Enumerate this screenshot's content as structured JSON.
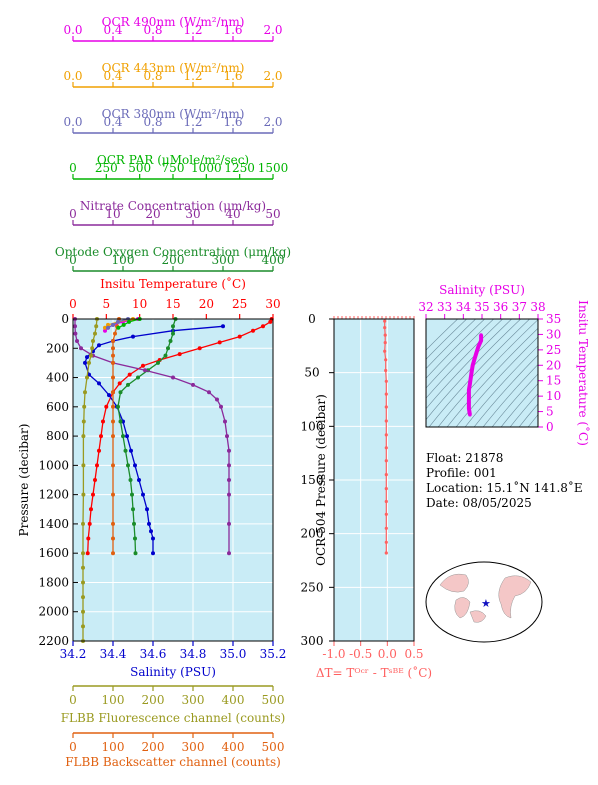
{
  "top_axes": [
    {
      "id": "ocr490",
      "label": "OCR 490nm (W/m²/nm)",
      "color": "#e600e6",
      "ticks": [
        "0.0",
        "0.4",
        "0.8",
        "1.2",
        "1.6",
        "2.0"
      ]
    },
    {
      "id": "ocr443",
      "label": "OCR 443nm (W/m²/nm)",
      "color": "#f0a000",
      "ticks": [
        "0.0",
        "0.4",
        "0.8",
        "1.2",
        "1.6",
        "2.0"
      ]
    },
    {
      "id": "ocr380",
      "label": "OCR 380nm (W/m²/nm)",
      "color": "#6a6ab8",
      "ticks": [
        "0.0",
        "0.4",
        "0.8",
        "1.2",
        "1.6",
        "2.0"
      ]
    },
    {
      "id": "par",
      "label": "OCR PAR (μMole/m²/sec)",
      "color": "#00b400",
      "ticks": [
        "0",
        "250",
        "500",
        "750",
        "1000",
        "1250",
        "1500"
      ]
    },
    {
      "id": "nitrate",
      "label": "Nitrate Concentration (μm/kg)",
      "color": "#8b2a9b",
      "ticks": [
        "0",
        "10",
        "20",
        "30",
        "40",
        "50"
      ]
    },
    {
      "id": "oxygen",
      "label": "Optode Oxygen Concentration (μm/kg)",
      "color": "#1a8c2a",
      "ticks": [
        "0",
        "100",
        "200",
        "300",
        "400"
      ]
    },
    {
      "id": "temp",
      "label": "Insitu Temperature (˚C)",
      "color": "#ff0000",
      "ticks": [
        "0",
        "5",
        "10",
        "15",
        "20",
        "25",
        "30"
      ]
    }
  ],
  "bottom_axes": [
    {
      "id": "salinity",
      "label": "Salinity (PSU)",
      "color": "#0000cc",
      "ticks": [
        "34.2",
        "34.4",
        "34.6",
        "34.8",
        "35.0",
        "35.2"
      ]
    },
    {
      "id": "fluor",
      "label": "FLBB Fluorescence channel (counts)",
      "color": "#9a9a20",
      "ticks": [
        "0",
        "100",
        "200",
        "300",
        "400",
        "500"
      ]
    },
    {
      "id": "backscatter",
      "label": "FLBB Backscatter channel (counts)",
      "color": "#e06010",
      "ticks": [
        "0",
        "100",
        "200",
        "300",
        "400",
        "500"
      ]
    }
  ],
  "chart_data": [
    {
      "type": "line",
      "panel": "main profile",
      "ylabel": "Pressure (decibar)",
      "ylim": [
        2200,
        0
      ],
      "yticks": [
        "0",
        "200",
        "400",
        "600",
        "800",
        "1000",
        "1200",
        "1400",
        "1600",
        "1800",
        "2000",
        "2200"
      ],
      "series": [
        {
          "name": "Insitu Temperature",
          "xlim": [
            0,
            30
          ],
          "color": "#ff0000",
          "x": [
            29.8,
            29.6,
            28.5,
            27,
            25,
            22,
            19,
            16,
            13,
            10.5,
            8.5,
            7,
            6,
            5,
            4.5,
            4.2,
            3.9,
            3.6,
            3.3,
            3.0,
            2.7,
            2.5,
            2.3,
            2.2
          ],
          "y": [
            0,
            20,
            50,
            80,
            120,
            160,
            200,
            240,
            280,
            320,
            380,
            440,
            500,
            600,
            700,
            800,
            900,
            1000,
            1100,
            1200,
            1300,
            1400,
            1500,
            1600
          ]
        },
        {
          "name": "Salinity",
          "xlim": [
            34.2,
            35.2
          ],
          "color": "#0000cc",
          "x": [
            34.95,
            34.7,
            34.5,
            34.4,
            34.33,
            34.3,
            34.27,
            34.26,
            34.28,
            34.33,
            34.38,
            34.42,
            34.45,
            34.47,
            34.49,
            34.51,
            34.53,
            34.55,
            34.57,
            34.58,
            34.59,
            34.6,
            34.6
          ],
          "y": [
            50,
            80,
            120,
            150,
            180,
            220,
            260,
            300,
            380,
            440,
            520,
            600,
            700,
            800,
            900,
            1000,
            1100,
            1200,
            1300,
            1400,
            1450,
            1500,
            1600
          ]
        },
        {
          "name": "Optode Oxygen Concentration",
          "xlim": [
            0,
            400
          ],
          "color": "#1a8c2a",
          "x": [
            205,
            200,
            200,
            195,
            190,
            185,
            170,
            150,
            130,
            110,
            95,
            90,
            95,
            100,
            105,
            110,
            115,
            118,
            120,
            122,
            124,
            125
          ],
          "y": [
            0,
            50,
            100,
            150,
            200,
            250,
            300,
            350,
            400,
            450,
            500,
            600,
            700,
            800,
            900,
            1000,
            1100,
            1200,
            1300,
            1400,
            1500,
            1600
          ]
        },
        {
          "name": "Nitrate Concentration",
          "xlim": [
            0,
            50
          ],
          "color": "#8b2a9b",
          "x": [
            0.5,
            0.5,
            0.6,
            1,
            2,
            5,
            10,
            18,
            25,
            30,
            34,
            36,
            37,
            38,
            38.5,
            39,
            39,
            39,
            39,
            39,
            39
          ],
          "y": [
            0,
            50,
            100,
            150,
            200,
            250,
            300,
            350,
            400,
            450,
            500,
            550,
            600,
            700,
            800,
            900,
            1000,
            1100,
            1200,
            1400,
            1600
          ]
        },
        {
          "name": "FLBB Fluorescence channel",
          "xlim": [
            0,
            500
          ],
          "color": "#9a9a20",
          "x": [
            60,
            58,
            55,
            50,
            48,
            45,
            40,
            35,
            30,
            28,
            27,
            26,
            26,
            26,
            25,
            25,
            25,
            25,
            25,
            25,
            25,
            25
          ],
          "y": [
            0,
            50,
            100,
            150,
            200,
            250,
            300,
            400,
            500,
            600,
            700,
            800,
            1000,
            1200,
            1400,
            1600,
            1700,
            1800,
            1900,
            2000,
            2100,
            2200
          ]
        },
        {
          "name": "FLBB Backscatter channel",
          "xlim": [
            0,
            500
          ],
          "color": "#e06010",
          "x": [
            115,
            110,
            105,
            100,
            100,
            100,
            100,
            100,
            100,
            100,
            100,
            100,
            100,
            100,
            100,
            100,
            100
          ],
          "y": [
            0,
            50,
            100,
            150,
            200,
            250,
            300,
            400,
            500,
            600,
            700,
            800,
            1000,
            1200,
            1400,
            1500,
            1600
          ]
        },
        {
          "name": "OCR 490nm",
          "xlim": [
            0,
            2.0
          ],
          "color": "#e600e6",
          "x": [
            0.65,
            0.5,
            0.4,
            0.35,
            0.32
          ],
          "y": [
            0,
            20,
            40,
            60,
            80
          ]
        },
        {
          "name": "OCR 443nm",
          "xlim": [
            0,
            2.0
          ],
          "color": "#f0a000",
          "x": [
            0.6,
            0.45,
            0.35,
            0.32
          ],
          "y": [
            0,
            20,
            40,
            60
          ]
        },
        {
          "name": "OCR 380nm",
          "xlim": [
            0,
            2.0
          ],
          "color": "#6a6ab8",
          "x": [
            0.55,
            0.45,
            0.4,
            0.35
          ],
          "y": [
            0,
            20,
            40,
            60
          ]
        },
        {
          "name": "OCR PAR",
          "xlim": [
            0,
            1500
          ],
          "color": "#00b400",
          "x": [
            500,
            420,
            380,
            340
          ],
          "y": [
            0,
            20,
            40,
            60
          ]
        }
      ]
    },
    {
      "type": "line",
      "panel": "delta T",
      "ylabel": "OCR-504 Pressure (decibar)",
      "xlabel": "ΔT= Tᴼᶜʳ - Tˢᴮᴱ (˚C)",
      "xlim": [
        -1.0,
        0.5
      ],
      "ylim": [
        300,
        0
      ],
      "xticks": [
        "-1.0",
        "-0.5",
        "0.0",
        "0.5"
      ],
      "yticks": [
        "0",
        "50",
        "100",
        "150",
        "200",
        "250",
        "300"
      ],
      "series": [
        {
          "name": "ΔT",
          "color": "#ff6060",
          "x": [
            -0.05,
            -0.05,
            -0.04,
            -0.04,
            -0.05,
            -0.03,
            -0.03,
            -0.02,
            -0.02,
            -0.02,
            -0.02,
            -0.02,
            -0.02,
            -0.02,
            -0.02,
            -0.02,
            -0.02,
            -0.02,
            -0.02,
            -0.02,
            -0.02
          ],
          "y": [
            2,
            8,
            15,
            22,
            30,
            38,
            48,
            58,
            70,
            82,
            95,
            108,
            120,
            132,
            145,
            158,
            170,
            182,
            195,
            208,
            218
          ]
        }
      ]
    },
    {
      "type": "line",
      "panel": "T-S diagram",
      "title": "Salinity (PSU)",
      "ylabel": "Insitu Temperature (˚C)",
      "xlim": [
        32,
        38
      ],
      "ylim": [
        0,
        35
      ],
      "xticks": [
        "32",
        "33",
        "34",
        "35",
        "36",
        "37",
        "38"
      ],
      "yticks": [
        "0",
        "5",
        "10",
        "15",
        "20",
        "25",
        "30",
        "35"
      ],
      "series": [
        {
          "name": "T-S",
          "color": "#e600e6",
          "x": [
            34.95,
            34.95,
            34.8,
            34.7,
            34.6,
            34.5,
            34.45,
            34.4,
            34.35,
            34.3,
            34.3,
            34.3,
            34.3,
            34.35
          ],
          "y": [
            29.8,
            28,
            26,
            24,
            22,
            20,
            18,
            16,
            14,
            12,
            10,
            8,
            6,
            4
          ]
        }
      ]
    }
  ],
  "info": {
    "float": "Float:  21878",
    "profile": "Profile:  001",
    "location": "Location:  15.1˚N  141.8˚E",
    "date": "Date:  08/05/2025"
  },
  "colors": {
    "plot_bg": "#c9ecf6",
    "grid": "#ffffff",
    "land": "#f4c7c7"
  }
}
